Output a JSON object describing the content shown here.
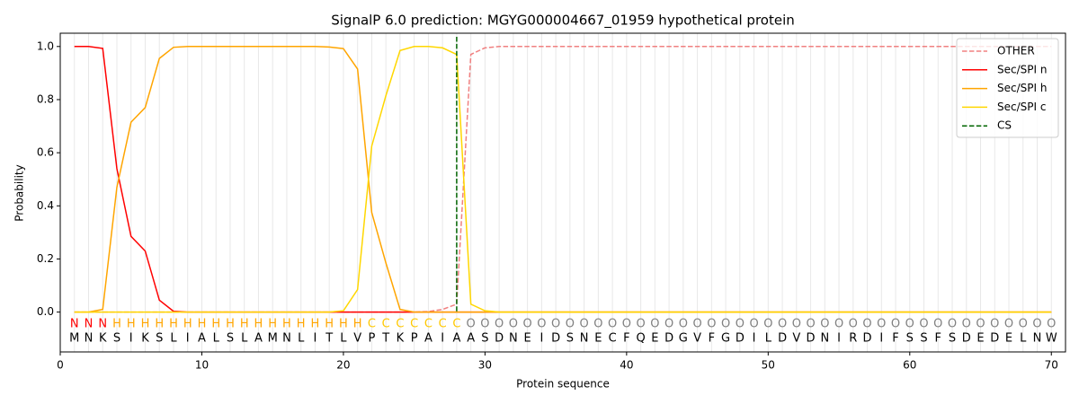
{
  "chart_data": {
    "type": "line",
    "title": "SignalP 6.0 prediction: MGYG000004667_01959 hypothetical protein",
    "xlabel": "Protein sequence",
    "ylabel": "Probability",
    "xlim": [
      0,
      71
    ],
    "ylim": [
      -0.15,
      1.05
    ],
    "xticks": [
      0,
      10,
      20,
      30,
      40,
      50,
      60,
      70
    ],
    "yticks": [
      {
        "value": 0,
        "label": "0.0"
      },
      {
        "value": 0.2,
        "label": "0.2"
      },
      {
        "value": 0.4,
        "label": "0.4"
      },
      {
        "value": 0.6,
        "label": "0.6"
      },
      {
        "value": 0.8,
        "label": "0.8"
      },
      {
        "value": 1,
        "label": "1.0"
      }
    ],
    "grid": true,
    "legend": "upper right",
    "x": [
      1,
      2,
      3,
      4,
      5,
      6,
      7,
      8,
      9,
      10,
      11,
      12,
      13,
      14,
      15,
      16,
      17,
      18,
      19,
      20,
      21,
      22,
      23,
      24,
      25,
      26,
      27,
      28,
      29,
      30,
      31,
      32,
      33,
      34,
      35,
      36,
      37,
      38,
      39,
      40,
      41,
      42,
      43,
      44,
      45,
      46,
      47,
      48,
      49,
      50,
      51,
      52,
      53,
      54,
      55,
      56,
      57,
      58,
      59,
      60,
      61,
      62,
      63,
      64,
      65,
      66,
      67,
      68,
      69,
      70
    ],
    "sequence": [
      "M",
      "N",
      "K",
      "S",
      "I",
      "K",
      "S",
      "L",
      "I",
      "A",
      "L",
      "S",
      "L",
      "A",
      "M",
      "N",
      "L",
      "I",
      "T",
      "L",
      "V",
      "P",
      "T",
      "K",
      "P",
      "A",
      "I",
      "A",
      "A",
      "S",
      "D",
      "N",
      "E",
      "I",
      "D",
      "S",
      "N",
      "E",
      "C",
      "F",
      "Q",
      "E",
      "D",
      "G",
      "V",
      "F",
      "G",
      "D",
      "I",
      "L",
      "D",
      "V",
      "D",
      "N",
      "I",
      "R",
      "D",
      "I",
      "F",
      "S",
      "S",
      "F",
      "S",
      "D",
      "E",
      "D",
      "E",
      "L",
      "N",
      "W"
    ],
    "labels": [
      "N",
      "N",
      "N",
      "H",
      "H",
      "H",
      "H",
      "H",
      "H",
      "H",
      "H",
      "H",
      "H",
      "H",
      "H",
      "H",
      "H",
      "H",
      "H",
      "H",
      "H",
      "C",
      "C",
      "C",
      "C",
      "C",
      "C",
      "C",
      "O",
      "O",
      "O",
      "O",
      "O",
      "O",
      "O",
      "O",
      "O",
      "O",
      "O",
      "O",
      "O",
      "O",
      "O",
      "O",
      "O",
      "O",
      "O",
      "O",
      "O",
      "O",
      "O",
      "O",
      "O",
      "O",
      "O",
      "O",
      "O",
      "O",
      "O",
      "O",
      "O",
      "O",
      "O",
      "O",
      "O",
      "O",
      "O",
      "O",
      "O",
      "O"
    ],
    "label_colors": {
      "N": "#ff0000",
      "H": "#ffa500",
      "C": "#ffc800",
      "O": "#808080"
    },
    "series": [
      {
        "name": "OTHER",
        "color": "#f08080",
        "dashed": true,
        "values": [
          0,
          0,
          0,
          0,
          0,
          0,
          0,
          0,
          0,
          0,
          0,
          0,
          0,
          0,
          0,
          0,
          0,
          0,
          0,
          0,
          0,
          0,
          0,
          0,
          0,
          0.002,
          0.01,
          0.03,
          0.97,
          0.995,
          1,
          1,
          1,
          1,
          1,
          1,
          1,
          1,
          1,
          1,
          1,
          1,
          1,
          1,
          1,
          1,
          1,
          1,
          1,
          1,
          1,
          1,
          1,
          1,
          1,
          1,
          1,
          1,
          1,
          1,
          1,
          1,
          1,
          1,
          1,
          1,
          1,
          1,
          1,
          1
        ]
      },
      {
        "name": "Sec/SPI n",
        "color": "#ff0000",
        "values": [
          1,
          1,
          0.993,
          0.54,
          0.285,
          0.23,
          0.045,
          0.003,
          0,
          0,
          0,
          0,
          0,
          0,
          0,
          0,
          0,
          0,
          0,
          0,
          0,
          0,
          0,
          0,
          0,
          0,
          0,
          0,
          0,
          0,
          0,
          0,
          0,
          0,
          0,
          0,
          0,
          0,
          0,
          0,
          0,
          0,
          0,
          0,
          0,
          0,
          0,
          0,
          0,
          0,
          0,
          0,
          0,
          0,
          0,
          0,
          0,
          0,
          0,
          0,
          0,
          0,
          0,
          0,
          0,
          0,
          0,
          0,
          0,
          0
        ]
      },
      {
        "name": "Sec/SPI h",
        "color": "#ffa500",
        "values": [
          0,
          0,
          0.01,
          0.47,
          0.715,
          0.77,
          0.955,
          0.997,
          1,
          1,
          1,
          1,
          1,
          1,
          1,
          1,
          1,
          1,
          0.998,
          0.992,
          0.915,
          0.375,
          0.185,
          0.01,
          0,
          0,
          0,
          0,
          0,
          0,
          0,
          0,
          0,
          0,
          0,
          0,
          0,
          0,
          0,
          0,
          0,
          0,
          0,
          0,
          0,
          0,
          0,
          0,
          0,
          0,
          0,
          0,
          0,
          0,
          0,
          0,
          0,
          0,
          0,
          0,
          0,
          0,
          0,
          0,
          0,
          0,
          0,
          0,
          0,
          0
        ]
      },
      {
        "name": "Sec/SPI c",
        "color": "#ffd700",
        "values": [
          0,
          0,
          0,
          0,
          0,
          0,
          0,
          0,
          0,
          0,
          0,
          0,
          0,
          0,
          0,
          0,
          0,
          0,
          0,
          0.005,
          0.085,
          0.625,
          0.815,
          0.985,
          1,
          1,
          0.995,
          0.97,
          0.03,
          0.005,
          0,
          0,
          0,
          0,
          0,
          0,
          0,
          0,
          0,
          0,
          0,
          0,
          0,
          0,
          0,
          0,
          0,
          0,
          0,
          0,
          0,
          0,
          0,
          0,
          0,
          0,
          0,
          0,
          0,
          0,
          0,
          0,
          0,
          0,
          0,
          0,
          0,
          0,
          0,
          0
        ]
      }
    ],
    "cs": {
      "name": "CS",
      "x": 28,
      "color": "#006400"
    }
  }
}
